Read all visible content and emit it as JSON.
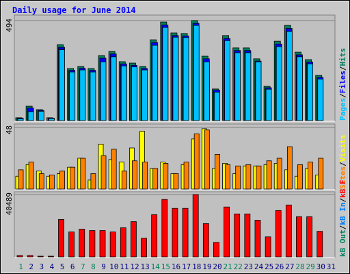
{
  "chart_data": [
    {
      "type": "bar",
      "title": "Daily usage for June 2014",
      "series": [
        {
          "name": "Hits",
          "color": "#00805c",
          "values": [
            14,
            71,
            54,
            14,
            375,
            257,
            267,
            257,
            321,
            341,
            291,
            284,
            267,
            399,
            487,
            433,
            430,
            494,
            318,
            156,
            420,
            359,
            359,
            305,
            169,
            392,
            470,
            338,
            301,
            223,
            0
          ]
        },
        {
          "name": "Files",
          "color": "#0000ff",
          "values": [
            12,
            62,
            50,
            12,
            362,
            248,
            258,
            248,
            308,
            329,
            280,
            273,
            257,
            385,
            472,
            420,
            418,
            480,
            305,
            150,
            405,
            346,
            346,
            294,
            162,
            378,
            455,
            325,
            289,
            213,
            0
          ]
        },
        {
          "name": "Pages",
          "color": "#00c0ff",
          "values": [
            8,
            44,
            46,
            10,
            350,
            240,
            250,
            240,
            290,
            315,
            270,
            265,
            250,
            372,
            460,
            412,
            410,
            470,
            290,
            140,
            395,
            335,
            335,
            290,
            155,
            365,
            440,
            315,
            280,
            205,
            0
          ]
        }
      ],
      "legend_separator": "/",
      "ylim": [
        0,
        494
      ],
      "yticks": [
        494
      ]
    },
    {
      "type": "bar",
      "series": [
        {
          "name": "Visits",
          "color": "#ffff00",
          "values": [
            10,
            19,
            14,
            10,
            12,
            17,
            24,
            7,
            35,
            23,
            21,
            32,
            45,
            16,
            21,
            12,
            19,
            39,
            47,
            16,
            20,
            12,
            18,
            18,
            19,
            20,
            15,
            10,
            16,
            11,
            0
          ]
        },
        {
          "name": "Sites",
          "color": "#ff8000",
          "values": [
            15,
            21,
            12,
            11,
            14,
            17,
            24,
            12,
            26,
            31,
            14,
            22,
            21,
            16,
            20,
            12,
            21,
            43,
            46,
            27,
            19,
            18,
            19,
            18,
            22,
            24,
            33,
            19,
            21,
            24,
            0
          ]
        }
      ],
      "legend_separator": "/",
      "ylim": [
        0,
        48
      ],
      "yticks": [
        48
      ]
    },
    {
      "type": "bar",
      "series": [
        {
          "name": "kB F",
          "color": "#ff0000",
          "values": [
            900,
            900,
            450,
            450,
            24300,
            16200,
            18000,
            17100,
            17100,
            16200,
            18900,
            22900,
            12100,
            27400,
            37300,
            31500,
            31500,
            40489,
            21600,
            9400,
            32400,
            27900,
            27900,
            23800,
            13000,
            30100,
            33700,
            26100,
            26100,
            16600,
            0
          ]
        }
      ],
      "extra_legend": [
        {
          "name": "kB In",
          "color": "#0080ff"
        },
        {
          "name": "kB Out",
          "color": "#00805c"
        }
      ],
      "legend_separator": "/",
      "ylim": [
        0,
        40489
      ],
      "yticks": [
        40489
      ],
      "categories": [
        "1",
        "2",
        "3",
        "4",
        "5",
        "6",
        "7",
        "8",
        "9",
        "10",
        "11",
        "12",
        "13",
        "14",
        "15",
        "16",
        "17",
        "18",
        "19",
        "20",
        "21",
        "22",
        "23",
        "24",
        "25",
        "26",
        "27",
        "28",
        "29",
        "30",
        "31"
      ],
      "weekends": [
        1,
        7,
        8,
        14,
        15,
        21,
        22,
        28,
        29
      ],
      "weekday_label_color": "#000080",
      "weekend_label_color": "#00805c"
    }
  ]
}
